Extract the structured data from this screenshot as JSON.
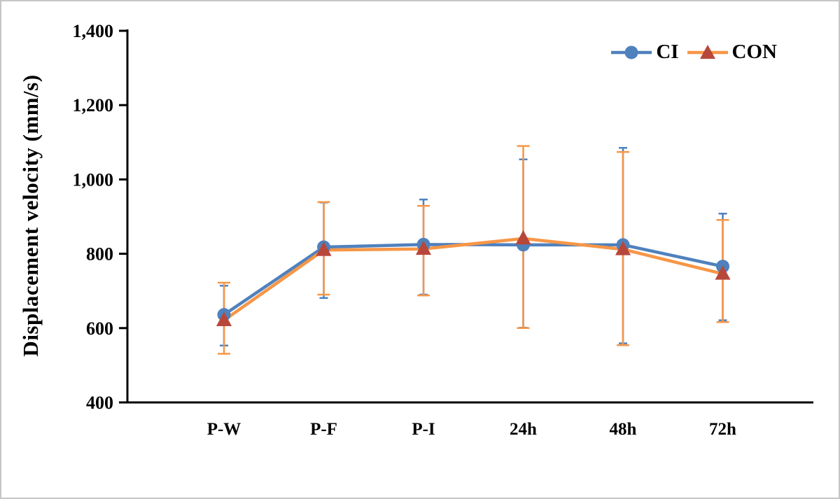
{
  "figure": {
    "background": "#ffffff",
    "border_color": "#c6c6c6"
  },
  "chart_data": {
    "type": "line",
    "title": "",
    "xlabel": "",
    "ylabel": "Displacement velocity (mm/s)",
    "categories": [
      "P-W",
      "P-F",
      "P-I",
      "24h",
      "48h",
      "72h"
    ],
    "ylim": [
      400,
      1400
    ],
    "ytick_step": 200,
    "ytick_labels": [
      "400",
      "600",
      "800",
      "1,000",
      "1,200",
      "1,400"
    ],
    "grid": false,
    "legend_position": "top-right",
    "axis_color": "#000000",
    "series": [
      {
        "name": "CI",
        "marker": "circle",
        "color": "#4f81bd",
        "marker_color": "#4f81bd",
        "values": [
          636,
          818,
          825,
          824,
          824,
          766
        ],
        "error_upper": [
          714,
          938,
          946,
          1054,
          1085,
          908
        ],
        "error_lower": [
          553,
          681,
          690,
          601,
          559,
          621
        ]
      },
      {
        "name": "CON",
        "marker": "triangle",
        "color": "#f79646",
        "marker_color": "#b8473b",
        "values": [
          621,
          810,
          813,
          841,
          812,
          746
        ],
        "error_upper": [
          722,
          939,
          929,
          1090,
          1074,
          891
        ],
        "error_lower": [
          531,
          690,
          688,
          600,
          554,
          616
        ]
      }
    ]
  }
}
